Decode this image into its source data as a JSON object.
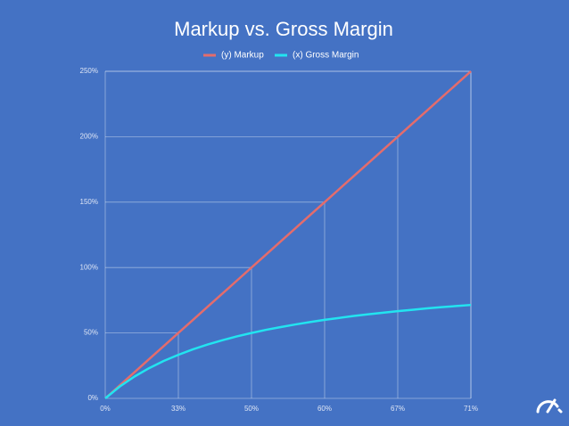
{
  "chart_data": {
    "type": "line",
    "title": "Markup vs. Gross Margin",
    "x": [
      0,
      10,
      20,
      30,
      40,
      50,
      60,
      70,
      80,
      90,
      100,
      110,
      120,
      130,
      140,
      150,
      160,
      170,
      180,
      190,
      200,
      210,
      220,
      230,
      240,
      250
    ],
    "series": [
      {
        "name": "(y) Markup",
        "color": "#e46c6c",
        "values": [
          0,
          10,
          20,
          30,
          40,
          50,
          60,
          70,
          80,
          90,
          100,
          110,
          120,
          130,
          140,
          150,
          160,
          170,
          180,
          190,
          200,
          210,
          220,
          230,
          240,
          250
        ]
      },
      {
        "name": "(x) Gross Margin",
        "color": "#22e4f0",
        "values": [
          0,
          9.1,
          16.7,
          23.1,
          28.6,
          33.3,
          37.5,
          41.2,
          44.4,
          47.4,
          50,
          52.4,
          54.5,
          56.5,
          58.3,
          60,
          61.5,
          63.0,
          64.3,
          65.5,
          66.7,
          67.7,
          68.8,
          69.7,
          70.6,
          71.4
        ]
      }
    ],
    "xlim": [
      0,
      250
    ],
    "xticks": [
      {
        "value": 0,
        "label": "0%"
      },
      {
        "value": 50,
        "label": "33%"
      },
      {
        "value": 100,
        "label": "50%"
      },
      {
        "value": 150,
        "label": "60%"
      },
      {
        "value": 200,
        "label": "67%"
      },
      {
        "value": 250,
        "label": "71%"
      }
    ],
    "ylim": [
      0,
      250
    ],
    "yticks": [
      {
        "value": 0,
        "label": "0%"
      },
      {
        "value": 50,
        "label": "50%"
      },
      {
        "value": 100,
        "label": "100%"
      },
      {
        "value": 150,
        "label": "150%"
      },
      {
        "value": 200,
        "label": "200%"
      },
      {
        "value": 250,
        "label": "250%"
      }
    ]
  }
}
